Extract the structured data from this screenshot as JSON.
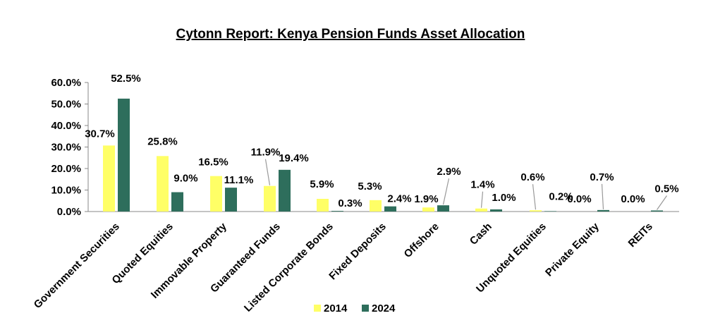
{
  "chart_data": {
    "type": "bar",
    "title": "Cytonn Report: Kenya Pension Funds Asset Allocation",
    "categories": [
      "Government Securities",
      "Quoted Equities",
      "Immovable Property",
      "Guaranteed Funds",
      "Listed Corporate Bonds",
      "Fixed Deposits",
      "Offshore",
      "Cash",
      "Unquoted Equities",
      "Private Equity",
      "REITs"
    ],
    "series": [
      {
        "name": "2014",
        "color": "#FFFF66",
        "values": [
          30.7,
          25.8,
          16.5,
          11.9,
          5.9,
          5.3,
          1.9,
          1.4,
          0.6,
          0.0,
          0.0
        ],
        "labels": [
          "30.7%",
          "25.8%",
          "16.5%",
          "11.9%",
          "5.9%",
          "5.3%",
          "1.9%",
          "1.4%",
          "0.6%",
          "0.0%",
          "0.0%"
        ]
      },
      {
        "name": "2024",
        "color": "#2E6E5C",
        "values": [
          52.5,
          9.0,
          11.1,
          19.4,
          0.3,
          2.4,
          2.9,
          1.0,
          0.2,
          0.7,
          0.5
        ],
        "labels": [
          "52.5%",
          "9.0%",
          "11.1%",
          "19.4%",
          "0.3%",
          "2.4%",
          "2.9%",
          "1.0%",
          "0.2%",
          "0.7%",
          "0.5%"
        ]
      }
    ],
    "yticks": [
      "0.0%",
      "10.0%",
      "20.0%",
      "30.0%",
      "40.0%",
      "50.0%",
      "60.0%"
    ],
    "ylim": [
      0,
      60
    ],
    "xlabel": "",
    "ylabel": "",
    "grid": false,
    "legend": "bottom"
  }
}
